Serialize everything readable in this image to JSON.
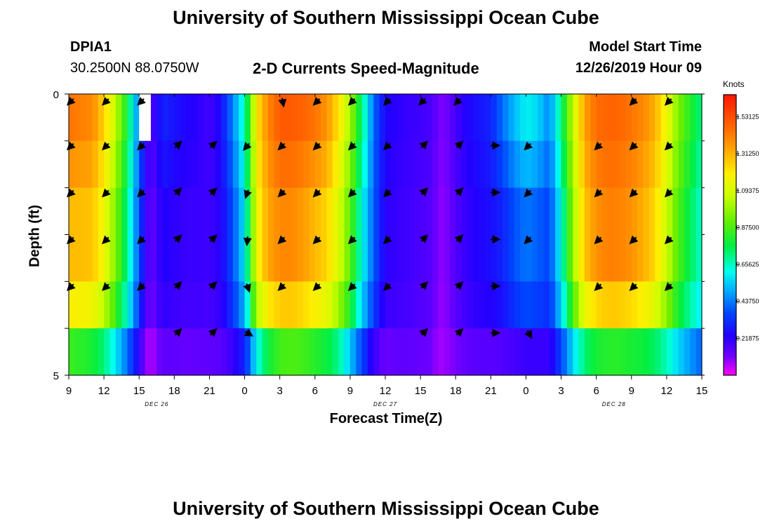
{
  "page": {
    "title_top": "University of Southern Mississippi Ocean Cube",
    "title_bottom": "University of Southern Mississippi Ocean Cube",
    "station_id": "DPIA1",
    "station_coords": "30.2500N 88.0750W",
    "subtitle": "2-D Currents Speed-Magnitude",
    "model_start_label": "Model Start Time",
    "model_start_value": "12/26/2019 Hour 09"
  },
  "chart_data": {
    "type": "heatmap",
    "title": "2-D Currents Speed-Magnitude",
    "xlabel": "Forecast Time(Z)",
    "ylabel": "Depth (ft)",
    "colorbar_label": "Knots",
    "colorbar_range": [
      0.0,
      1.6625
    ],
    "colorbar_ticks": [
      "1.53125",
      "1.31250",
      "1.09375",
      "0.87500",
      "0.65625",
      "0.43750",
      "0.21875"
    ],
    "colorbar_tick_values": [
      1.53125,
      1.3125,
      1.09375,
      0.875,
      0.65625,
      0.4375,
      0.21875
    ],
    "xlim_hours": [
      0,
      54
    ],
    "ylim_ft": [
      0,
      5
    ],
    "y_ticks": [
      "0",
      "5"
    ],
    "x_ticks": [
      "9",
      "12",
      "15",
      "18",
      "21",
      "0",
      "3",
      "6",
      "9",
      "12",
      "15",
      "18",
      "21",
      "0",
      "3",
      "6",
      "9",
      "12",
      "15"
    ],
    "date_labels": [
      {
        "label": "DEC 26",
        "hour": 7.5
      },
      {
        "label": "DEC 27",
        "hour": 27
      },
      {
        "label": "DEC 28",
        "hour": 46.5
      }
    ],
    "depth_levels": [
      0,
      1,
      2,
      3,
      4,
      5
    ],
    "speed_profiles": [
      {
        "name": "surface",
        "hours": [
          0,
          2,
          3,
          4,
          5,
          6,
          6.5,
          7,
          8,
          9,
          10,
          11,
          12,
          13,
          14,
          15,
          15.5,
          16,
          17,
          18,
          19,
          20,
          21,
          22,
          23,
          24,
          25,
          26,
          27,
          28,
          29,
          30,
          31,
          31.5,
          32,
          33,
          34,
          35,
          36,
          37,
          38,
          39,
          40,
          41,
          42,
          43,
          44,
          45,
          46,
          47,
          48,
          49,
          50,
          51,
          52,
          53,
          54
        ],
        "values": [
          1.44,
          1.4,
          1.25,
          1.05,
          0.78,
          0.42,
          0.25,
          0.16,
          0.3,
          0.27,
          0.24,
          0.22,
          0.18,
          0.26,
          0.45,
          0.66,
          0.9,
          1.2,
          1.4,
          1.5,
          1.5,
          1.48,
          1.44,
          1.38,
          1.22,
          1.0,
          0.72,
          0.42,
          0.24,
          0.22,
          0.2,
          0.19,
          0.17,
          0.12,
          0.1,
          0.18,
          0.24,
          0.27,
          0.3,
          0.42,
          0.52,
          0.6,
          0.56,
          0.45,
          0.72,
          1.05,
          1.35,
          1.46,
          1.48,
          1.47,
          1.44,
          1.4,
          1.32,
          1.15,
          0.95,
          0.82,
          0.7
        ]
      },
      {
        "name": "mid",
        "hours": [
          0,
          2,
          3,
          4,
          5,
          6,
          6.5,
          7,
          8,
          9,
          10,
          11,
          12,
          13,
          14,
          15,
          15.5,
          16,
          17,
          18,
          19,
          20,
          21,
          22,
          23,
          24,
          25,
          26,
          27,
          28,
          29,
          30,
          31,
          31.5,
          32,
          33,
          34,
          35,
          36,
          37,
          38,
          39,
          40,
          41,
          42,
          43,
          44,
          45,
          46,
          47,
          48,
          49,
          50,
          51,
          52,
          53,
          54
        ],
        "values": [
          1.3,
          1.28,
          1.15,
          0.95,
          0.7,
          0.38,
          0.22,
          0.12,
          0.24,
          0.21,
          0.2,
          0.2,
          0.19,
          0.23,
          0.38,
          0.58,
          0.85,
          1.15,
          1.34,
          1.4,
          1.4,
          1.36,
          1.3,
          1.25,
          1.1,
          0.9,
          0.62,
          0.4,
          0.22,
          0.2,
          0.19,
          0.17,
          0.15,
          0.1,
          0.09,
          0.16,
          0.21,
          0.24,
          0.26,
          0.3,
          0.38,
          0.43,
          0.4,
          0.36,
          0.62,
          0.98,
          1.28,
          1.38,
          1.42,
          1.41,
          1.38,
          1.32,
          1.24,
          1.07,
          0.88,
          0.75,
          0.64
        ]
      },
      {
        "name": "bottom",
        "hours": [
          0,
          2,
          3,
          4,
          5,
          6,
          6.5,
          7,
          8,
          9,
          10,
          11,
          12,
          13,
          14,
          15,
          15.5,
          16,
          17,
          18,
          19,
          20,
          21,
          22,
          23,
          24,
          25,
          26,
          27,
          28,
          29,
          30,
          31,
          31.5,
          32,
          33,
          34,
          35,
          36,
          37,
          38,
          39,
          40,
          41,
          42,
          43,
          44,
          45,
          46,
          47,
          48,
          49,
          50,
          51,
          52,
          53,
          54
        ],
        "values": [
          0.85,
          0.8,
          0.72,
          0.58,
          0.42,
          0.22,
          0.1,
          0.06,
          0.14,
          0.14,
          0.13,
          0.14,
          0.14,
          0.15,
          0.2,
          0.3,
          0.44,
          0.6,
          0.78,
          0.86,
          0.88,
          0.86,
          0.82,
          0.78,
          0.7,
          0.54,
          0.36,
          0.2,
          0.12,
          0.14,
          0.14,
          0.13,
          0.12,
          0.07,
          0.08,
          0.11,
          0.14,
          0.15,
          0.15,
          0.16,
          0.18,
          0.2,
          0.2,
          0.2,
          0.36,
          0.56,
          0.72,
          0.8,
          0.82,
          0.82,
          0.8,
          0.78,
          0.74,
          0.66,
          0.56,
          0.48,
          0.4
        ]
      }
    ],
    "depth_profile_weights": [
      [
        1.0,
        0.0,
        0.0
      ],
      [
        0.55,
        0.45,
        0.0
      ],
      [
        0.0,
        1.0,
        0.0
      ],
      [
        0.0,
        1.0,
        0.0
      ],
      [
        0.0,
        0.75,
        0.25
      ],
      [
        0.0,
        0.0,
        1.0
      ]
    ],
    "missing_cells": [
      {
        "hour": 6.5,
        "depth_level": 0
      }
    ],
    "vector_hours": [
      0,
      3,
      6,
      9,
      12,
      15,
      18,
      21,
      24,
      27,
      30,
      33,
      36,
      39,
      42,
      45,
      48,
      51
    ],
    "vector_directions_deg": [
      [
        135,
        135,
        135,
        null,
        null,
        null,
        80,
        135,
        135,
        135,
        135,
        135,
        null,
        null,
        null,
        null,
        135,
        135
      ],
      [
        135,
        135,
        135,
        -45,
        -45,
        130,
        135,
        135,
        135,
        135,
        -45,
        -45,
        0,
        135,
        null,
        135,
        135,
        135
      ],
      [
        135,
        135,
        135,
        -45,
        -45,
        110,
        135,
        135,
        135,
        135,
        -45,
        -45,
        0,
        135,
        null,
        135,
        135,
        135
      ],
      [
        135,
        135,
        135,
        -45,
        -45,
        95,
        135,
        135,
        135,
        135,
        -45,
        -45,
        0,
        135,
        null,
        135,
        135,
        135
      ],
      [
        135,
        135,
        135,
        -45,
        -45,
        70,
        135,
        135,
        135,
        135,
        -45,
        -45,
        0,
        null,
        null,
        135,
        135,
        135
      ],
      [
        null,
        null,
        null,
        -45,
        -45,
        30,
        null,
        null,
        null,
        null,
        -45,
        -45,
        0,
        60,
        null,
        null,
        null,
        null
      ]
    ]
  }
}
